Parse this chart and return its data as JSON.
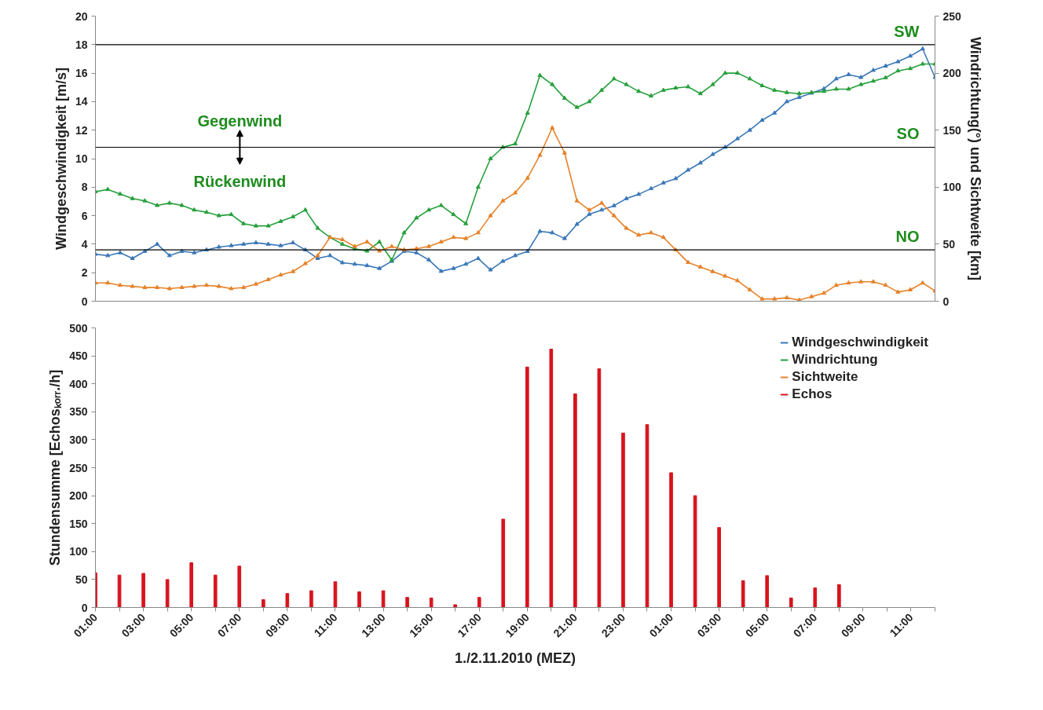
{
  "chart_data": [
    {
      "type": "line",
      "ylabel": "Windgeschwindigkeit [m/s]",
      "y2label": "Windrichtung(°) und Sichtweite [km]",
      "annotations": [
        "Gegenwind",
        "Rückenwind"
      ],
      "categories": [
        null,
        null,
        null,
        null,
        null,
        null,
        null,
        null,
        null,
        null,
        null,
        null,
        null,
        null,
        null,
        null,
        null,
        null,
        null,
        null,
        null,
        null,
        null,
        null,
        null,
        null,
        null,
        null,
        null,
        null,
        null,
        null,
        null,
        null,
        null,
        null,
        null,
        null,
        null,
        null,
        null,
        null,
        null,
        null,
        null,
        null,
        null,
        null,
        null,
        null,
        null,
        null,
        null,
        null,
        null,
        null,
        null,
        null,
        null,
        null,
        null,
        null,
        null,
        null,
        null,
        null,
        null,
        null,
        null
      ],
      "ylim": [
        0,
        20
      ],
      "yticks": [
        0,
        2,
        4,
        6,
        8,
        10,
        12,
        14,
        16,
        18,
        20
      ],
      "y2lim": [
        0,
        250
      ],
      "y2ticks": [
        0,
        50,
        100,
        150,
        200,
        250
      ],
      "tick_labels": "y",
      "legend": "bottom right",
      "marker": "triangle",
      "line_style": "solid",
      "ref_lines": [
        {
          "axis": "y2",
          "value": 225,
          "label": "SW",
          "color": "#000000"
        },
        {
          "axis": "y2",
          "value": 135,
          "label": "SO",
          "color": "#000000"
        },
        {
          "axis": "y2",
          "value": 45,
          "label": "NO",
          "color": "#000000"
        }
      ],
      "series": [
        {
          "name": "Windgeschwindigkeit",
          "color": "#3a78b8",
          "values": [
            3.3,
            3.2,
            3.4,
            3.0,
            3.5,
            4.0,
            3.2,
            3.5,
            3.4,
            3.6,
            3.8,
            3.9,
            4.0,
            4.1,
            4.0,
            3.9,
            4.1,
            3.6,
            3.0,
            3.2,
            2.7,
            2.6,
            2.5,
            2.3,
            2.8,
            3.5,
            3.4,
            2.9,
            2.1,
            2.3,
            2.6,
            3.0,
            2.2,
            2.8,
            3.2,
            3.5,
            4.9,
            4.8,
            4.4,
            5.4,
            6.1,
            6.4,
            6.7,
            7.2,
            7.5,
            7.9,
            8.3,
            8.6,
            9.2,
            9.7,
            10.3,
            10.8,
            11.4,
            12.0,
            12.7,
            13.2,
            14.0,
            14.3,
            14.6,
            14.9,
            15.6,
            15.9,
            15.7,
            16.2,
            16.5,
            16.8,
            17.2,
            17.7,
            15.7
          ]
        },
        {
          "name": "Windrichtung",
          "color": "#26a03c",
          "axis": "y2",
          "values": [
            96,
            98,
            94,
            90,
            88,
            84,
            86,
            84,
            80,
            78,
            75,
            76,
            68,
            66,
            66,
            70,
            74,
            80,
            64,
            56,
            50,
            46,
            44,
            52,
            36,
            60,
            73,
            80,
            84,
            76,
            68,
            100,
            125,
            135,
            138,
            165,
            198,
            190,
            178,
            170,
            175,
            185,
            195,
            190,
            184,
            180,
            185,
            187,
            188,
            182,
            190,
            200,
            200,
            195,
            189,
            185,
            183,
            182,
            183,
            184,
            186,
            186,
            190,
            193,
            196,
            202,
            204,
            208,
            208
          ]
        },
        {
          "name": "Sichtweite",
          "color": "#e6822a",
          "axis": "y2",
          "values": [
            16,
            16,
            14,
            13,
            12,
            12,
            11,
            12,
            13,
            14,
            13,
            11,
            12,
            15,
            19,
            23,
            26,
            33,
            40,
            56,
            54,
            48,
            52,
            44,
            48,
            45,
            46,
            48,
            52,
            56,
            55,
            60,
            75,
            88,
            95,
            108,
            128,
            152,
            130,
            88,
            80,
            86,
            75,
            64,
            58,
            60,
            56,
            45,
            34,
            30,
            26,
            22,
            18,
            10,
            2,
            2,
            3,
            1,
            4,
            7,
            14,
            16,
            17,
            17,
            14,
            8,
            10,
            16,
            9
          ]
        }
      ]
    },
    {
      "type": "bar",
      "ylabel": "Stundensumme [Echosₖₒᵣᵣ./h]",
      "xlabel": "1./2.11.2010 (MEZ)",
      "legend": "top right",
      "x": [
        "2010-11-01T01:00",
        "2010-11-01T02:00",
        "2010-11-01T03:00",
        "2010-11-01T04:00",
        "2010-11-01T05:00",
        "2010-11-01T06:00",
        "2010-11-01T07:00",
        "2010-11-01T08:00",
        "2010-11-01T09:00",
        "2010-11-01T10:00",
        "2010-11-01T11:00",
        "2010-11-01T12:00",
        "2010-11-01T13:00",
        "2010-11-01T14:00",
        "2010-11-01T15:00",
        "2010-11-01T16:00",
        "2010-11-01T17:00",
        "2010-11-01T18:00",
        "2010-11-01T19:00",
        "2010-11-01T20:00",
        "2010-11-01T21:00",
        "2010-11-01T22:00",
        "2010-11-01T23:00",
        "2010-11-02T00:00",
        "2010-11-02T01:00",
        "2010-11-02T02:00",
        "2010-11-02T03:00",
        "2010-11-02T04:00",
        "2010-11-02T05:00",
        "2010-11-02T06:00",
        "2010-11-02T07:00",
        "2010-11-02T08:00"
      ],
      "xlim": [
        "2010-11-01T01:00",
        "2010-11-02T12:00"
      ],
      "ylim": [
        0,
        500
      ],
      "yticks": [
        0,
        50,
        100,
        150,
        200,
        250,
        300,
        350,
        400,
        450,
        500
      ],
      "xticks": [
        {
          "value": "2010-11-01T01:00",
          "label": "01:00"
        },
        {
          "value": "2010-11-01T02:00",
          "label": null
        },
        {
          "value": "2010-11-01T03:00",
          "label": "03:00"
        },
        {
          "value": "2010-11-01T04:00",
          "label": null
        },
        {
          "value": "2010-11-01T05:00",
          "label": "05:00"
        },
        {
          "value": "2010-11-01T06:00",
          "label": null
        },
        {
          "value": "2010-11-01T07:00",
          "label": "07:00"
        },
        {
          "value": "2010-11-01T08:00",
          "label": null
        },
        {
          "value": "2010-11-01T09:00",
          "label": "09:00"
        },
        {
          "value": "2010-11-01T10:00",
          "label": null
        },
        {
          "value": "2010-11-01T11:00",
          "label": "11:00"
        },
        {
          "value": "2010-11-01T12:00",
          "label": null
        },
        {
          "value": "2010-11-01T13:00",
          "label": "13:00"
        },
        {
          "value": "2010-11-01T14:00",
          "label": null
        },
        {
          "value": "2010-11-01T15:00",
          "label": "15:00"
        },
        {
          "value": "2010-11-01T16:00",
          "label": null
        },
        {
          "value": "2010-11-01T17:00",
          "label": "17:00"
        },
        {
          "value": "2010-11-01T18:00",
          "label": null
        },
        {
          "value": "2010-11-01T19:00",
          "label": "19:00"
        },
        {
          "value": "2010-11-01T20:00",
          "label": null
        },
        {
          "value": "2010-11-01T21:00",
          "label": "21:00"
        },
        {
          "value": "2010-11-01T22:00",
          "label": null
        },
        {
          "value": "2010-11-01T23:00",
          "label": "23:00"
        },
        {
          "value": "2010-11-02T00:00",
          "label": null
        },
        {
          "value": "2010-11-02T01:00",
          "label": "01:00"
        },
        {
          "value": "2010-11-02T02:00",
          "label": null
        },
        {
          "value": "2010-11-02T03:00",
          "label": "03:00"
        },
        {
          "value": "2010-11-02T04:00",
          "label": null
        },
        {
          "value": "2010-11-02T05:00",
          "label": "05:00"
        },
        {
          "value": "2010-11-02T06:00",
          "label": null
        },
        {
          "value": "2010-11-02T07:00",
          "label": "07:00"
        },
        {
          "value": "2010-11-02T08:00",
          "label": null
        },
        {
          "value": "2010-11-02T09:00",
          "label": "09:00"
        },
        {
          "value": "2010-11-02T10:00",
          "label": null
        },
        {
          "value": "2010-11-02T11:00",
          "label": "11:00"
        },
        {
          "value": "2010-11-02T12:00",
          "label": null
        }
      ],
      "series": [
        {
          "name": "Echos",
          "color": "#d7141e",
          "values": [
            62,
            58,
            61,
            50,
            80,
            58,
            74,
            14,
            25,
            30,
            46,
            28,
            30,
            18,
            17,
            5,
            18,
            158,
            430,
            462,
            382,
            427,
            312,
            327,
            241,
            200,
            143,
            48,
            57,
            17,
            35,
            41
          ]
        }
      ]
    }
  ]
}
